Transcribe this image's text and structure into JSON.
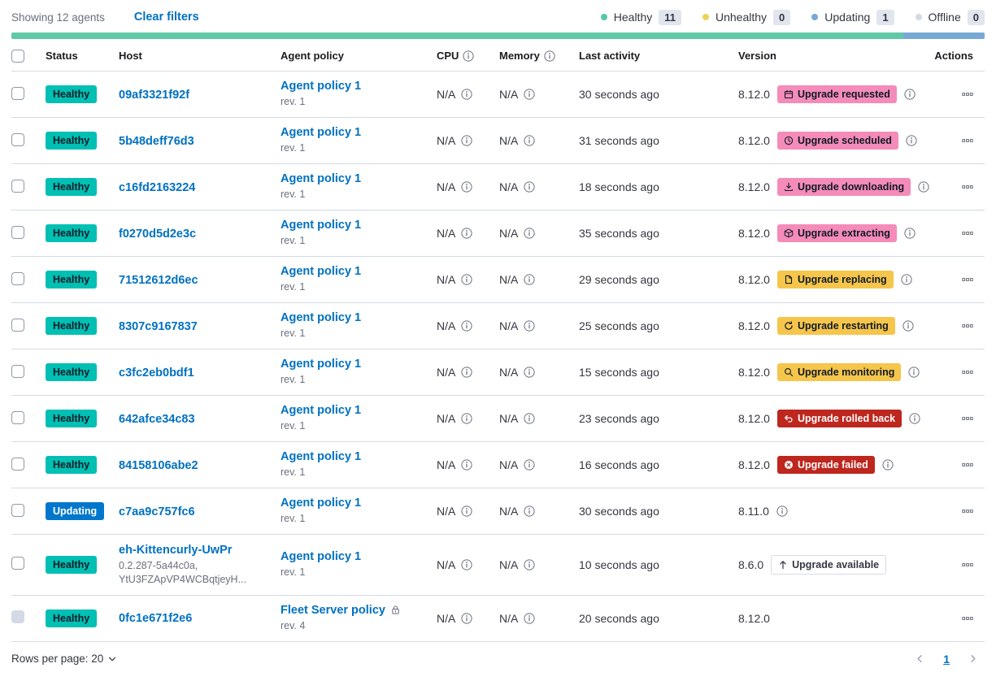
{
  "toolbar": {
    "showing": "Showing 12 agents",
    "clear_filters": "Clear filters",
    "legend": [
      {
        "label": "Healthy",
        "count": "11",
        "color": "#54C8A8"
      },
      {
        "label": "Unhealthy",
        "count": "0",
        "color": "#EBD25B"
      },
      {
        "label": "Updating",
        "count": "1",
        "color": "#78A8D4"
      },
      {
        "label": "Offline",
        "count": "0",
        "color": "#D3DAE6"
      }
    ]
  },
  "health_bar": {
    "segments": [
      {
        "name": "healthy",
        "color": "#5FC9A7",
        "width": "91.67%"
      },
      {
        "name": "updating",
        "color": "#78A8D4",
        "width": "8.33%"
      }
    ]
  },
  "colors": {
    "healthy": "#00BFB3",
    "updating": "#0077CC",
    "accent": "#F48BB8",
    "warning": "#F6C54B",
    "danger": "#BD271E",
    "link": "#0071C2"
  },
  "table": {
    "headers": {
      "status": "Status",
      "host": "Host",
      "policy": "Agent policy",
      "cpu": "CPU",
      "memory": "Memory",
      "last_activity": "Last activity",
      "version": "Version",
      "actions": "Actions"
    },
    "rows": [
      {
        "status": {
          "label": "Healthy",
          "variant": "healthy"
        },
        "checkbox_disabled": false,
        "host": {
          "name": "09af3321f92f",
          "sub": []
        },
        "policy": {
          "name": "Agent policy 1",
          "rev": "rev. 1",
          "locked": false
        },
        "cpu": "N/A",
        "memory": "N/A",
        "last_activity": "30 seconds ago",
        "version": "8.12.0",
        "upgrade": {
          "label": "Upgrade requested",
          "icon": "calendar-icon",
          "variant": "accent"
        },
        "version_info": true
      },
      {
        "status": {
          "label": "Healthy",
          "variant": "healthy"
        },
        "checkbox_disabled": false,
        "host": {
          "name": "5b48deff76d3",
          "sub": []
        },
        "policy": {
          "name": "Agent policy 1",
          "rev": "rev. 1",
          "locked": false
        },
        "cpu": "N/A",
        "memory": "N/A",
        "last_activity": "31 seconds ago",
        "version": "8.12.0",
        "upgrade": {
          "label": "Upgrade scheduled",
          "icon": "clock-icon",
          "variant": "accent"
        },
        "version_info": true
      },
      {
        "status": {
          "label": "Healthy",
          "variant": "healthy"
        },
        "checkbox_disabled": false,
        "host": {
          "name": "c16fd2163224",
          "sub": []
        },
        "policy": {
          "name": "Agent policy 1",
          "rev": "rev. 1",
          "locked": false
        },
        "cpu": "N/A",
        "memory": "N/A",
        "last_activity": "18 seconds ago",
        "version": "8.12.0",
        "upgrade": {
          "label": "Upgrade downloading",
          "icon": "download-icon",
          "variant": "accent"
        },
        "version_info": true
      },
      {
        "status": {
          "label": "Healthy",
          "variant": "healthy"
        },
        "checkbox_disabled": false,
        "host": {
          "name": "f0270d5d2e3c",
          "sub": []
        },
        "policy": {
          "name": "Agent policy 1",
          "rev": "rev. 1",
          "locked": false
        },
        "cpu": "N/A",
        "memory": "N/A",
        "last_activity": "35 seconds ago",
        "version": "8.12.0",
        "upgrade": {
          "label": "Upgrade extracting",
          "icon": "package-icon",
          "variant": "accent"
        },
        "version_info": true
      },
      {
        "status": {
          "label": "Healthy",
          "variant": "healthy"
        },
        "checkbox_disabled": false,
        "host": {
          "name": "71512612d6ec",
          "sub": []
        },
        "policy": {
          "name": "Agent policy 1",
          "rev": "rev. 1",
          "locked": false
        },
        "cpu": "N/A",
        "memory": "N/A",
        "last_activity": "29 seconds ago",
        "version": "8.12.0",
        "upgrade": {
          "label": "Upgrade replacing",
          "icon": "document-icon",
          "variant": "warning"
        },
        "version_info": true
      },
      {
        "status": {
          "label": "Healthy",
          "variant": "healthy"
        },
        "checkbox_disabled": false,
        "host": {
          "name": "8307c9167837",
          "sub": []
        },
        "policy": {
          "name": "Agent policy 1",
          "rev": "rev. 1",
          "locked": false
        },
        "cpu": "N/A",
        "memory": "N/A",
        "last_activity": "25 seconds ago",
        "version": "8.12.0",
        "upgrade": {
          "label": "Upgrade restarting",
          "icon": "refresh-icon",
          "variant": "warning"
        },
        "version_info": true
      },
      {
        "status": {
          "label": "Healthy",
          "variant": "healthy"
        },
        "checkbox_disabled": false,
        "host": {
          "name": "c3fc2eb0bdf1",
          "sub": []
        },
        "policy": {
          "name": "Agent policy 1",
          "rev": "rev. 1",
          "locked": false
        },
        "cpu": "N/A",
        "memory": "N/A",
        "last_activity": "15 seconds ago",
        "version": "8.12.0",
        "upgrade": {
          "label": "Upgrade monitoring",
          "icon": "inspect-icon",
          "variant": "warning"
        },
        "version_info": true
      },
      {
        "status": {
          "label": "Healthy",
          "variant": "healthy"
        },
        "checkbox_disabled": false,
        "host": {
          "name": "642afce34c83",
          "sub": []
        },
        "policy": {
          "name": "Agent policy 1",
          "rev": "rev. 1",
          "locked": false
        },
        "cpu": "N/A",
        "memory": "N/A",
        "last_activity": "23 seconds ago",
        "version": "8.12.0",
        "upgrade": {
          "label": "Upgrade rolled back",
          "icon": "return-arrow-icon",
          "variant": "danger"
        },
        "version_info": true
      },
      {
        "status": {
          "label": "Healthy",
          "variant": "healthy"
        },
        "checkbox_disabled": false,
        "host": {
          "name": "84158106abe2",
          "sub": []
        },
        "policy": {
          "name": "Agent policy 1",
          "rev": "rev. 1",
          "locked": false
        },
        "cpu": "N/A",
        "memory": "N/A",
        "last_activity": "16 seconds ago",
        "version": "8.12.0",
        "upgrade": {
          "label": "Upgrade failed",
          "icon": "cross-circle-icon",
          "variant": "danger"
        },
        "version_info": true
      },
      {
        "status": {
          "label": "Updating",
          "variant": "updating"
        },
        "checkbox_disabled": false,
        "host": {
          "name": "c7aa9c757fc6",
          "sub": []
        },
        "policy": {
          "name": "Agent policy 1",
          "rev": "rev. 1",
          "locked": false
        },
        "cpu": "N/A",
        "memory": "N/A",
        "last_activity": "30 seconds ago",
        "version": "8.11.0",
        "upgrade": null,
        "version_info": true
      },
      {
        "status": {
          "label": "Healthy",
          "variant": "healthy"
        },
        "checkbox_disabled": false,
        "host": {
          "name": "eh-Kittencurly-UwPr",
          "sub": [
            "0.2.287-5a44c0a,",
            "YtU3FZApVP4WCBqtjeyH..."
          ]
        },
        "policy": {
          "name": "Agent policy 1",
          "rev": "rev. 1",
          "locked": false
        },
        "cpu": "N/A",
        "memory": "N/A",
        "last_activity": "10 seconds ago",
        "version": "8.6.0",
        "upgrade": {
          "label": "Upgrade available",
          "icon": "arrow-up-icon",
          "variant": "hollow"
        },
        "version_info": false
      },
      {
        "status": {
          "label": "Healthy",
          "variant": "healthy"
        },
        "checkbox_disabled": true,
        "host": {
          "name": "0fc1e671f2e6",
          "sub": []
        },
        "policy": {
          "name": "Fleet Server policy",
          "rev": "rev. 4",
          "locked": true
        },
        "cpu": "N/A",
        "memory": "N/A",
        "last_activity": "20 seconds ago",
        "version": "8.12.0",
        "upgrade": null,
        "version_info": false
      }
    ]
  },
  "footer": {
    "rows_per_page": "Rows per page: 20",
    "page": "1"
  }
}
